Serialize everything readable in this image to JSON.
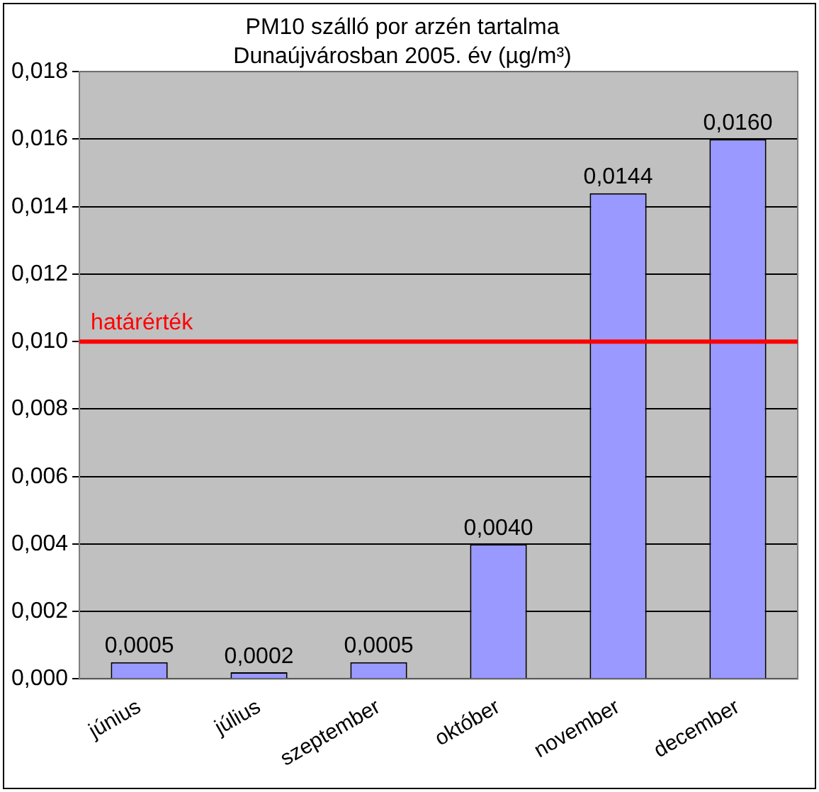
{
  "chart_data": {
    "type": "bar",
    "title": "PM10 szálló por arzén tartalma\nDunaújvárosban 2005. év (µg/m³)",
    "categories": [
      "június",
      "július",
      "szeptember",
      "október",
      "november",
      "december"
    ],
    "values": [
      0.0005,
      0.0002,
      0.0005,
      0.004,
      0.0144,
      0.016
    ],
    "value_labels": [
      "0,0005",
      "0,0002",
      "0,0005",
      "0,0040",
      "0,0144",
      "0,0160"
    ],
    "color": "#9999ff",
    "ylim": [
      0,
      0.018
    ],
    "yticks": [
      {
        "value": 0,
        "label": "0,000"
      },
      {
        "value": 0.002,
        "label": "0,002"
      },
      {
        "value": 0.004,
        "label": "0,004"
      },
      {
        "value": 0.006,
        "label": "0,006"
      },
      {
        "value": 0.008,
        "label": "0,008"
      },
      {
        "value": 0.01,
        "label": "0,010"
      },
      {
        "value": 0.012,
        "label": "0,012"
      },
      {
        "value": 0.014,
        "label": "0,014"
      },
      {
        "value": 0.016,
        "label": "0,016"
      },
      {
        "value": 0.018,
        "label": "0,018"
      }
    ],
    "ref_lines": [
      {
        "axis": "y",
        "value": 0.01,
        "label": "határérték",
        "color": "#ff0000"
      }
    ],
    "grid": "y",
    "legend": false
  }
}
